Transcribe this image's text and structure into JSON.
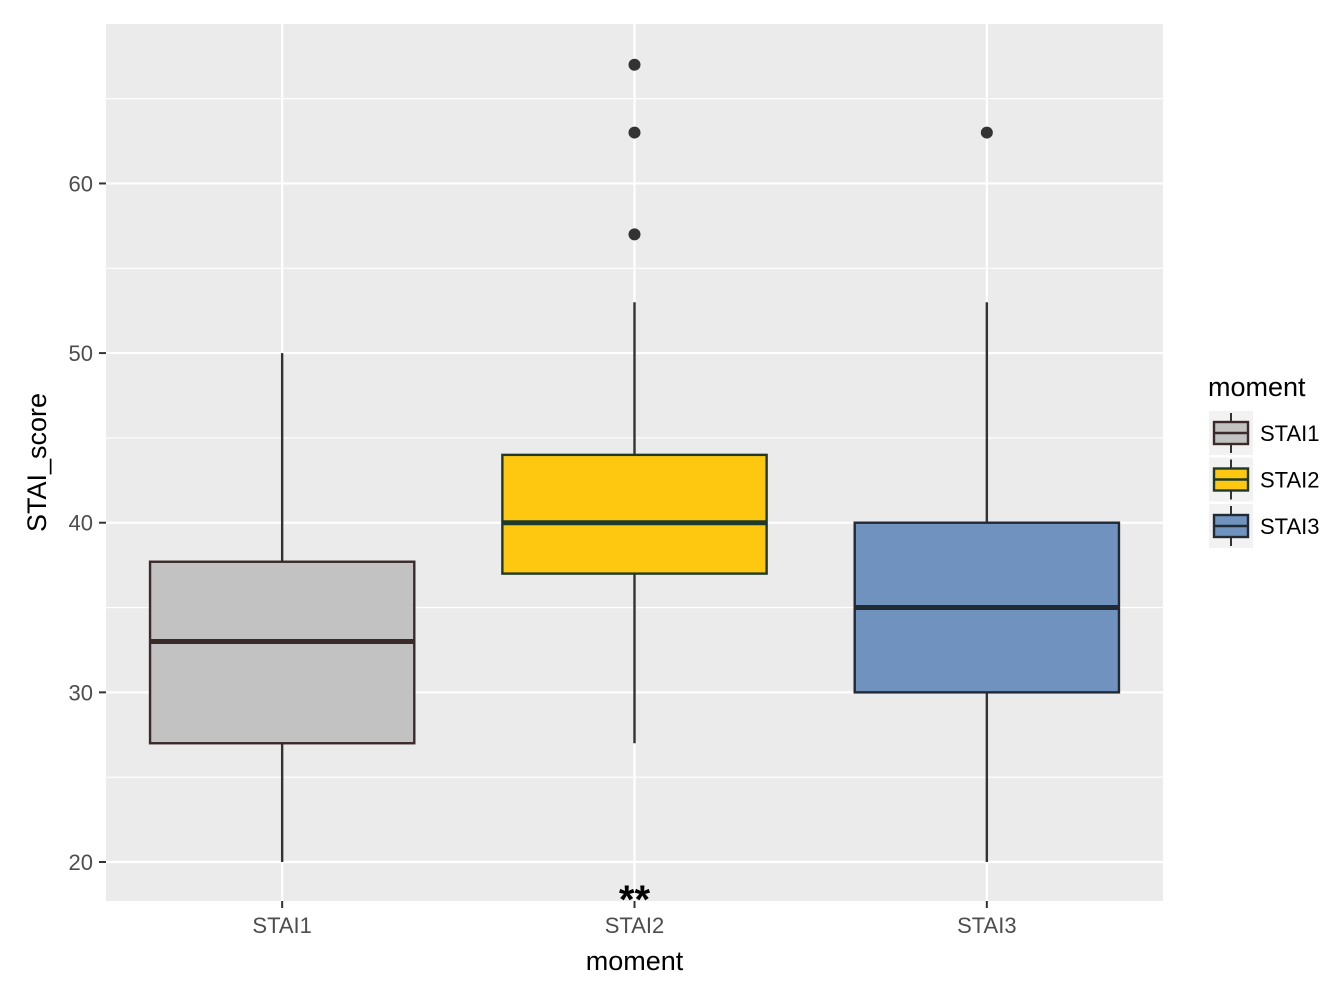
{
  "chart_data": {
    "type": "boxplot",
    "xlabel": "moment",
    "ylabel": "STAI_score",
    "ylim": [
      17.7,
      69.4
    ],
    "y_ticks": [
      20,
      30,
      40,
      50,
      60
    ],
    "grid": true,
    "legend": {
      "title": "moment",
      "position": "right"
    },
    "categories": [
      "STAI1",
      "STAI2",
      "STAI3"
    ],
    "boxes": [
      {
        "name": "STAI1",
        "fill": "#c2c2c2",
        "line": "#3a2a2a",
        "whisker_low": 20,
        "q1": 27,
        "median": 33,
        "q3": 37.7,
        "whisker_high": 50,
        "outliers": [],
        "annotation": ""
      },
      {
        "name": "STAI2",
        "fill": "#fdc80f",
        "line": "#1f3a2a",
        "whisker_low": 27,
        "q1": 37,
        "median": 40,
        "q3": 44,
        "whisker_high": 53,
        "outliers": [
          57,
          63,
          67
        ],
        "annotation": "**"
      },
      {
        "name": "STAI3",
        "fill": "#7092be",
        "line": "#222a33",
        "whisker_low": 20,
        "q1": 30,
        "median": 35,
        "q3": 40,
        "whisker_high": 53,
        "outliers": [
          63
        ],
        "annotation": ""
      }
    ]
  }
}
